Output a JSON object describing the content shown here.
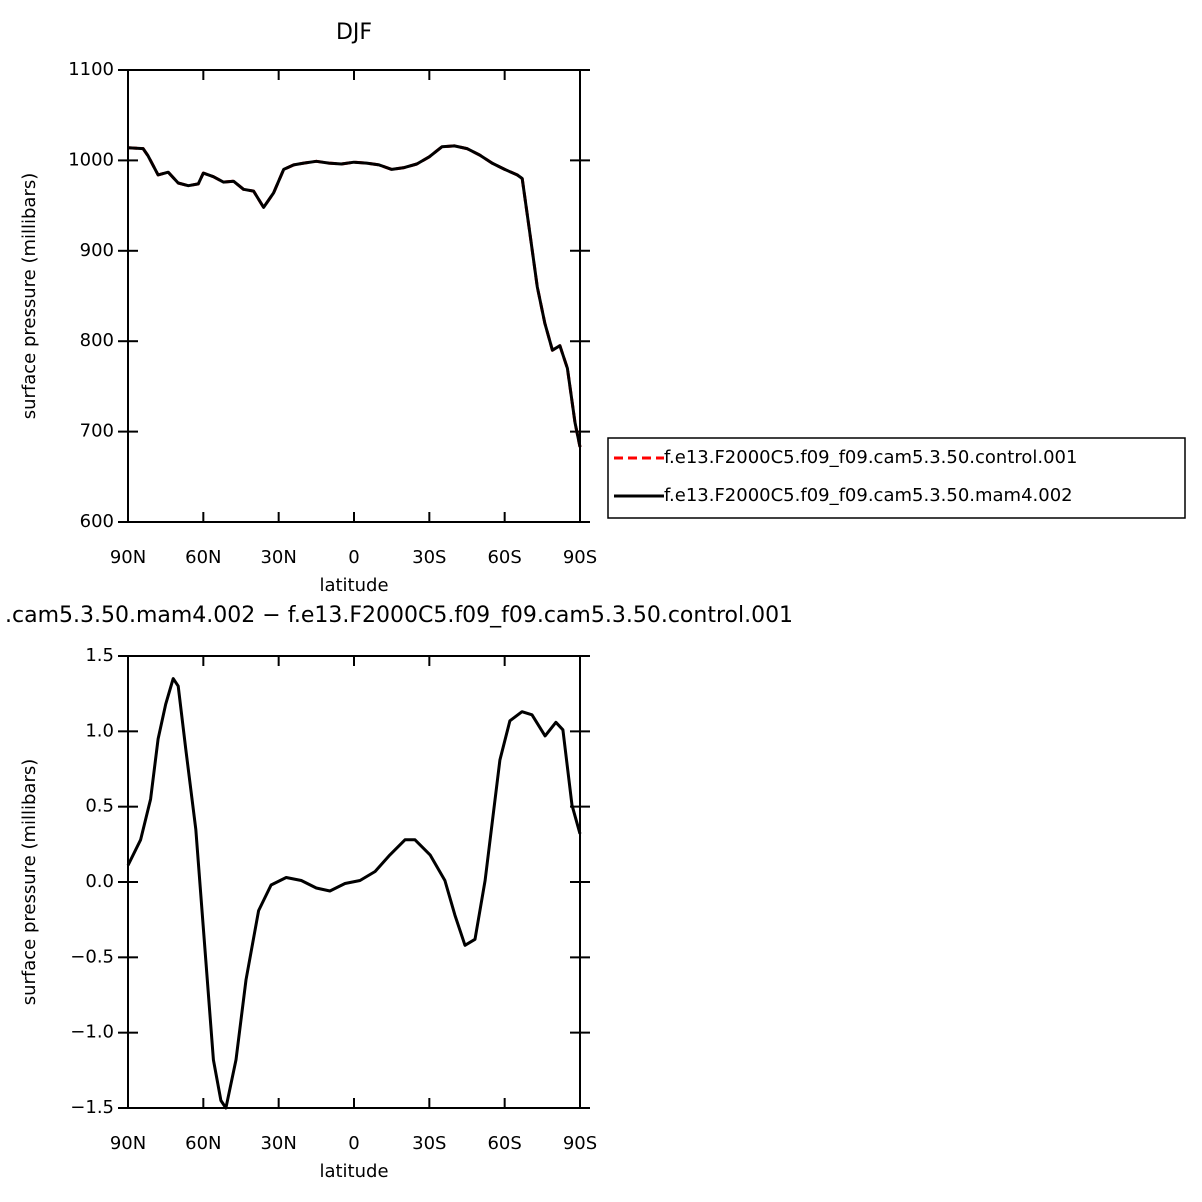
{
  "chart_data": [
    {
      "type": "line",
      "title": "DJF",
      "xlabel": "latitude",
      "ylabel": "surface pressure (millibars)",
      "x": [
        90,
        84,
        82,
        78,
        74,
        70,
        66,
        62,
        60,
        56,
        52,
        48,
        44,
        40,
        36,
        32,
        28,
        24,
        20,
        15,
        10,
        5,
        0,
        -5,
        -10,
        -15,
        -20,
        -25,
        -30,
        -35,
        -40,
        -45,
        -50,
        -55,
        -60,
        -65,
        -67,
        -70,
        -73,
        -76,
        -79,
        -82,
        -85,
        -88,
        -90
      ],
      "series": [
        {
          "name": "f.e13.F2000C5.f09_f09.cam5.3.50.control.001",
          "color": "#ff0000",
          "dash": true,
          "values": [
            1014,
            1013,
            1005,
            984,
            987,
            975,
            972,
            974,
            986,
            982,
            976,
            977,
            968,
            966,
            948,
            964,
            990,
            995,
            997,
            999,
            997,
            996,
            998,
            997,
            995,
            990,
            992,
            996,
            1004,
            1015,
            1016,
            1013,
            1006,
            997,
            990,
            984,
            980,
            920,
            860,
            820,
            790,
            795,
            770,
            710,
            683
          ]
        },
        {
          "name": "f.e13.F2000C5.f09_f09.cam5.3.50.mam4.002",
          "color": "#000000",
          "dash": false,
          "values": [
            1014,
            1013,
            1005,
            984,
            987,
            975,
            972,
            974,
            986,
            982,
            976,
            977,
            968,
            966,
            948,
            964,
            990,
            995,
            997,
            999,
            997,
            996,
            998,
            997,
            995,
            990,
            992,
            996,
            1004,
            1015,
            1016,
            1013,
            1006,
            997,
            990,
            984,
            980,
            920,
            860,
            820,
            790,
            795,
            770,
            710,
            683
          ]
        }
      ],
      "xlim": [
        90,
        -90
      ],
      "xticks": [
        {
          "value": 90,
          "label": "90N"
        },
        {
          "value": 60,
          "label": "60N"
        },
        {
          "value": 30,
          "label": "30N"
        },
        0,
        {
          "value": -30,
          "label": "30S"
        },
        {
          "value": -60,
          "label": "60S"
        },
        {
          "value": -90,
          "label": "90S"
        }
      ],
      "ylim": [
        600,
        1100
      ],
      "yticks": [
        600,
        700,
        800,
        900,
        1000,
        1100
      ],
      "legend": "right"
    },
    {
      "type": "line",
      "title": ".cam5.3.50.mam4.002 − f.e13.F2000C5.f09_f09.cam5.3.50.control.001",
      "xlabel": "latitude",
      "ylabel": "surface pressure (millibars)",
      "x": [
        90,
        85,
        81,
        78,
        75,
        72,
        70,
        67,
        63,
        59,
        56,
        53,
        51,
        47,
        43,
        38,
        33,
        27,
        21,
        15,
        9.6,
        3.6,
        -2.4,
        -8.4,
        -14.3,
        -20.3,
        -24.3,
        -30.3,
        -36.2,
        -40.2,
        -44.2,
        -48.2,
        -52.2,
        -58.1,
        -62.1,
        -66.9,
        -70.9,
        -76.1,
        -80.4,
        -83.2,
        -86.8,
        -90
      ],
      "series": [
        {
          "color": "#000000",
          "dash": false,
          "values": [
            0.11,
            0.28,
            0.55,
            0.95,
            1.18,
            1.35,
            1.3,
            0.88,
            0.35,
            -0.52,
            -1.18,
            -1.45,
            -1.5,
            -1.18,
            -0.65,
            -0.19,
            -0.02,
            0.03,
            0.01,
            -0.04,
            -0.06,
            -0.01,
            0.01,
            0.07,
            0.18,
            0.28,
            0.28,
            0.18,
            0.01,
            -0.22,
            -0.42,
            -0.38,
            0.01,
            0.81,
            1.07,
            1.13,
            1.11,
            0.97,
            1.06,
            1.01,
            0.51,
            0.32
          ]
        }
      ],
      "xlim": [
        90,
        -90
      ],
      "xticks": [
        {
          "value": 90,
          "label": "90N"
        },
        {
          "value": 60,
          "label": "60N"
        },
        {
          "value": 30,
          "label": "30N"
        },
        0,
        {
          "value": -30,
          "label": "30S"
        },
        {
          "value": -60,
          "label": "60S"
        },
        {
          "value": -90,
          "label": "90S"
        }
      ],
      "ylim": [
        -1.5,
        1.5
      ],
      "yticks": [
        {
          "value": -1.5,
          "label": "−1.5"
        },
        {
          "value": -1.0,
          "label": "−1.0"
        },
        {
          "value": -0.5,
          "label": "−0.5"
        },
        {
          "value": 0,
          "label": "0.0"
        },
        0.5,
        {
          "value": 1.0,
          "label": "1.0"
        },
        1.5
      ]
    }
  ]
}
